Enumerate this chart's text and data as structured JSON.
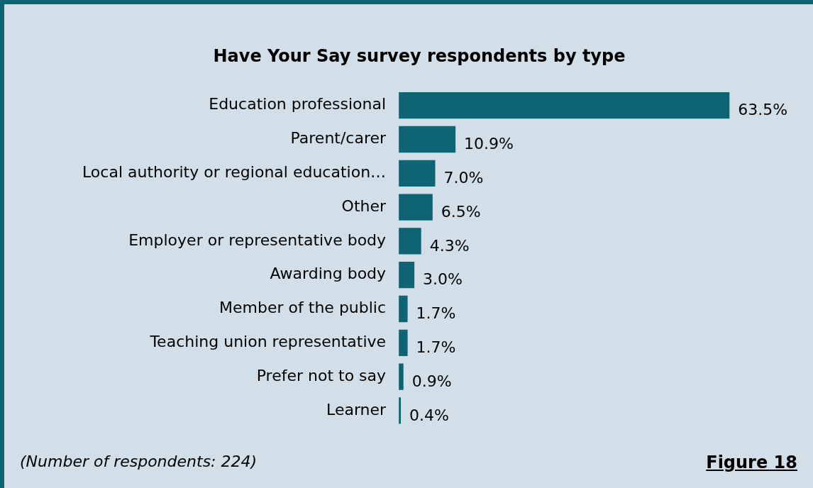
{
  "chart_data": {
    "type": "bar",
    "orientation": "horizontal",
    "title": "Have Your Say survey respondents by type",
    "categories": [
      "Education professional",
      "Parent/carer",
      "Local authority or regional education…",
      "Other",
      "Employer or representative body",
      "Awarding body",
      "Member of the public",
      "Teaching union representative",
      "Prefer not to say",
      "Learner"
    ],
    "values": [
      63.5,
      10.9,
      7.0,
      6.5,
      4.3,
      3.0,
      1.7,
      1.7,
      0.9,
      0.4
    ],
    "value_labels": [
      "63.5%",
      "10.9%",
      "7.0%",
      "6.5%",
      "4.3%",
      "3.0%",
      "1.7%",
      "1.7%",
      "0.9%",
      "0.4%"
    ],
    "color": "#0e6472",
    "annotations": [
      "(Number of respondents: 224)",
      "Figure 18"
    ]
  }
}
